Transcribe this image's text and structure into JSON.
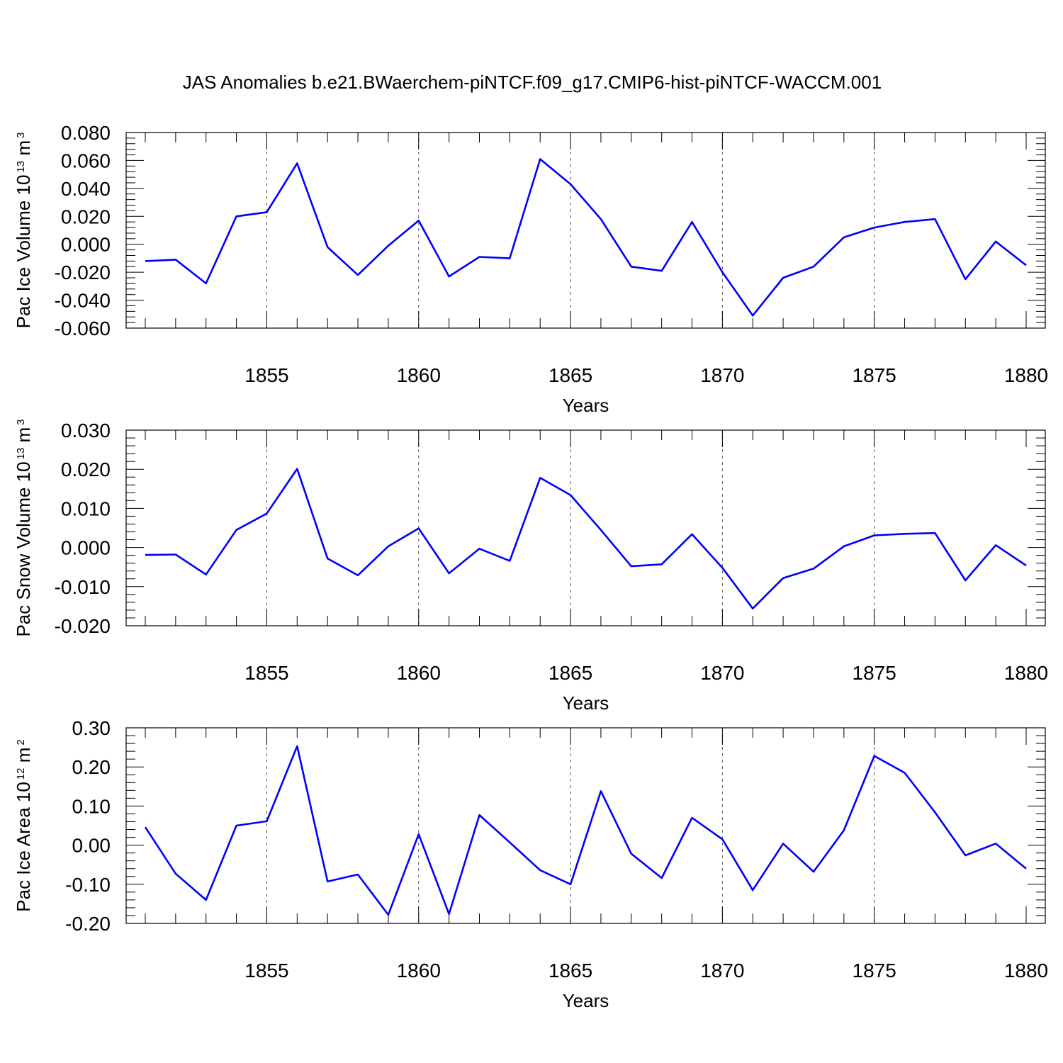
{
  "figure": {
    "title": "JAS Anomalies b.e21.BWaerchem-piNTCF.f09_g17.CMIP6-hist-piNTCF-WACCM.001"
  },
  "chart_data": [
    {
      "type": "line",
      "ylabel": {
        "main": "Pac Ice Volume 10",
        "exponent": "13",
        "unit": " m",
        "unit_exponent": "3"
      },
      "xlabel": "Years",
      "xlim": [
        1851,
        1880
      ],
      "ylim": [
        -0.06,
        0.08
      ],
      "yticks": [
        "0.080",
        "0.060",
        "0.040",
        "0.020",
        "0.000",
        "-0.020",
        "-0.040",
        "-0.060"
      ],
      "ytick_values": [
        0.08,
        0.06,
        0.04,
        0.02,
        0.0,
        -0.02,
        -0.04,
        -0.06
      ],
      "xticks": [
        "1855",
        "1860",
        "1865",
        "1870",
        "1875",
        "1880"
      ],
      "xtick_values": [
        1855,
        1860,
        1865,
        1870,
        1875,
        1880
      ],
      "grid_x": [
        1855,
        1860,
        1865,
        1870,
        1875
      ],
      "line_color": "#0000ff",
      "x": [
        1851,
        1852,
        1853,
        1854,
        1855,
        1856,
        1857,
        1858,
        1859,
        1860,
        1861,
        1862,
        1863,
        1864,
        1865,
        1866,
        1867,
        1868,
        1869,
        1870,
        1871,
        1872,
        1873,
        1874,
        1875,
        1876,
        1877,
        1878,
        1879,
        1880
      ],
      "values": [
        -0.012,
        -0.011,
        -0.028,
        0.02,
        0.023,
        0.058,
        -0.002,
        -0.022,
        -0.001,
        0.017,
        -0.023,
        -0.009,
        -0.01,
        0.061,
        0.043,
        0.018,
        -0.016,
        -0.019,
        0.016,
        -0.02,
        -0.051,
        -0.024,
        -0.016,
        0.005,
        0.012,
        0.016,
        0.018,
        -0.025,
        0.002,
        -0.015
      ]
    },
    {
      "type": "line",
      "ylabel": {
        "main": "Pac Snow Volume 10",
        "exponent": "13",
        "unit": " m",
        "unit_exponent": "3"
      },
      "xlabel": "Years",
      "xlim": [
        1851,
        1880
      ],
      "ylim": [
        -0.02,
        0.03
      ],
      "yticks": [
        "0.030",
        "0.020",
        "0.010",
        "0.000",
        "-0.010",
        "-0.020"
      ],
      "ytick_values": [
        0.03,
        0.02,
        0.01,
        0.0,
        -0.01,
        -0.02
      ],
      "xticks": [
        "1855",
        "1860",
        "1865",
        "1870",
        "1875",
        "1880"
      ],
      "xtick_values": [
        1855,
        1860,
        1865,
        1870,
        1875,
        1880
      ],
      "grid_x": [
        1855,
        1860,
        1865,
        1870,
        1875
      ],
      "line_color": "#0000ff",
      "x": [
        1851,
        1852,
        1853,
        1854,
        1855,
        1856,
        1857,
        1858,
        1859,
        1860,
        1861,
        1862,
        1863,
        1864,
        1865,
        1866,
        1867,
        1868,
        1869,
        1870,
        1871,
        1872,
        1873,
        1874,
        1875,
        1876,
        1877,
        1878,
        1879,
        1880
      ],
      "values": [
        -0.0019,
        -0.0018,
        -0.0069,
        0.0045,
        0.0087,
        0.0201,
        -0.0028,
        -0.0071,
        0.0003,
        0.0049,
        -0.0066,
        -0.0003,
        -0.0034,
        0.0178,
        0.0134,
        0.0045,
        -0.0048,
        -0.0043,
        0.0034,
        -0.0052,
        -0.0156,
        -0.0078,
        -0.0054,
        0.0003,
        0.0031,
        0.0035,
        0.0037,
        -0.0084,
        0.0006,
        -0.0046
      ]
    },
    {
      "type": "line",
      "ylabel": {
        "main": "Pac Ice Area 10",
        "exponent": "12",
        "unit": " m",
        "unit_exponent": "2"
      },
      "xlabel": "Years",
      "xlim": [
        1851,
        1880
      ],
      "ylim": [
        -0.2,
        0.3
      ],
      "yticks": [
        "0.30",
        "0.20",
        "0.10",
        "0.00",
        "-0.10",
        "-0.20"
      ],
      "ytick_values": [
        0.3,
        0.2,
        0.1,
        0.0,
        -0.1,
        -0.2
      ],
      "xticks": [
        "1855",
        "1860",
        "1865",
        "1870",
        "1875",
        "1880"
      ],
      "xtick_values": [
        1855,
        1860,
        1865,
        1870,
        1875,
        1880
      ],
      "grid_x": [
        1855,
        1860,
        1865,
        1870,
        1875
      ],
      "line_color": "#0000ff",
      "x": [
        1851,
        1852,
        1853,
        1854,
        1855,
        1856,
        1857,
        1858,
        1859,
        1860,
        1861,
        1862,
        1863,
        1864,
        1865,
        1866,
        1867,
        1868,
        1869,
        1870,
        1871,
        1872,
        1873,
        1874,
        1875,
        1876,
        1877,
        1878,
        1879,
        1880
      ],
      "values": [
        0.046,
        -0.073,
        -0.14,
        0.05,
        0.061,
        0.253,
        -0.093,
        -0.075,
        -0.178,
        0.028,
        -0.176,
        0.077,
        0.007,
        -0.064,
        -0.1,
        0.138,
        -0.022,
        -0.084,
        0.07,
        0.015,
        -0.115,
        0.004,
        -0.068,
        0.038,
        0.228,
        0.185,
        0.084,
        -0.026,
        0.004,
        -0.06
      ]
    }
  ]
}
